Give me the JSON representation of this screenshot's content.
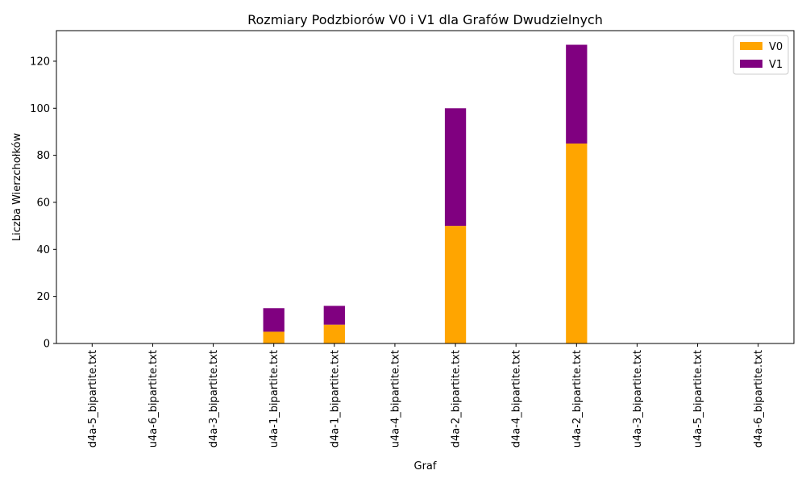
{
  "chart_data": {
    "type": "bar",
    "stacked": true,
    "title": "Rozmiary Podzbiorów V0 i V1 dla Grafów Dwudzielnych",
    "xlabel": "Graf",
    "ylabel": "Liczba Wierzchołków",
    "ylim": [
      0,
      133
    ],
    "yticks": [
      0,
      20,
      40,
      60,
      80,
      100,
      120
    ],
    "grid": false,
    "legend_position": "top-right",
    "categories": [
      "d4a-5_bipartite.txt",
      "u4a-6_bipartite.txt",
      "d4a-3_bipartite.txt",
      "u4a-1_bipartite.txt",
      "d4a-1_bipartite.txt",
      "u4a-4_bipartite.txt",
      "d4a-2_bipartite.txt",
      "d4a-4_bipartite.txt",
      "u4a-2_bipartite.txt",
      "u4a-3_bipartite.txt",
      "u4a-5_bipartite.txt",
      "d4a-6_bipartite.txt"
    ],
    "series": [
      {
        "name": "V0",
        "color": "#FFA500",
        "values": [
          0,
          0,
          0,
          5,
          8,
          0,
          50,
          0,
          85,
          0,
          0,
          0
        ]
      },
      {
        "name": "V1",
        "color": "#800080",
        "values": [
          0,
          0,
          0,
          10,
          8,
          0,
          50,
          0,
          42,
          0,
          0,
          0
        ]
      }
    ]
  }
}
